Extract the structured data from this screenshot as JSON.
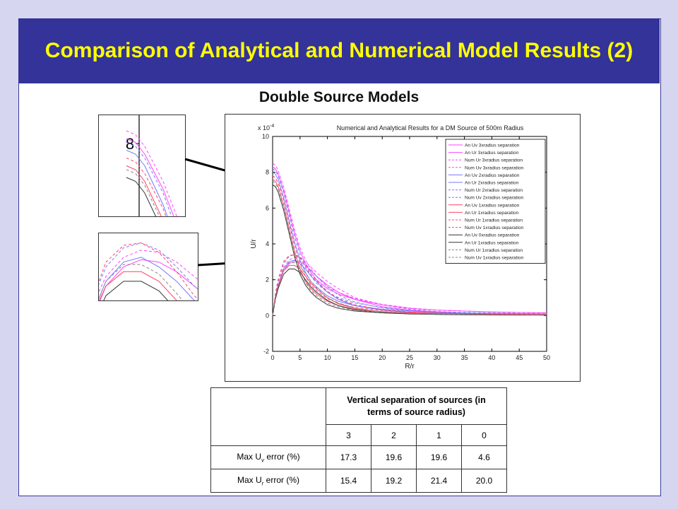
{
  "slide": {
    "title": "Comparison of Analytical and Numerical Model Results (2)",
    "subtitle": "Double Source Models"
  },
  "inset1": {
    "label": "8"
  },
  "chart_data": {
    "type": "line",
    "title": "Numerical and Analytical Results for a DM Source of 500m Radius",
    "xlabel": "R/r",
    "ylabel": "U/r",
    "y_exponent": "x 10",
    "y_exponent_power": "-4",
    "xlim": [
      0,
      50
    ],
    "ylim": [
      -2,
      10
    ],
    "xticks": [
      0,
      5,
      10,
      15,
      20,
      25,
      30,
      35,
      40,
      45,
      50
    ],
    "yticks": [
      -2,
      0,
      2,
      4,
      6,
      8,
      10
    ],
    "grid": false,
    "legend_position": "top-right",
    "x": [
      0,
      0.5,
      1,
      2,
      3,
      4,
      5,
      6,
      7,
      8,
      10,
      12,
      15,
      20,
      25,
      30,
      35,
      40,
      45,
      50
    ],
    "series": [
      {
        "name": "An Uv 3xradius separation",
        "color": "#ff44ff",
        "dash": false,
        "values": [
          8.3,
          8.2,
          7.9,
          7.0,
          5.8,
          4.6,
          3.6,
          2.9,
          2.4,
          2.0,
          1.5,
          1.2,
          0.9,
          0.6,
          0.4,
          0.3,
          0.25,
          0.2,
          0.17,
          0.15
        ]
      },
      {
        "name": "An Ur 3xradius separation",
        "color": "#ff44ff",
        "dash": false,
        "values": [
          0,
          1.0,
          1.7,
          2.5,
          2.9,
          3.05,
          3.0,
          2.8,
          2.5,
          2.2,
          1.7,
          1.3,
          0.9,
          0.5,
          0.3,
          0.2,
          0.13,
          0.1,
          0.08,
          0.06
        ]
      },
      {
        "name": "Num Ur 3xradius separation",
        "color": "#ff44ff",
        "dash": true,
        "values": [
          0,
          1.1,
          1.9,
          2.7,
          3.1,
          3.25,
          3.2,
          3.0,
          2.7,
          2.4,
          1.9,
          1.5,
          1.0,
          0.6,
          0.35,
          0.22,
          0.15,
          0.11,
          0.09,
          0.07
        ]
      },
      {
        "name": "Num Uv 3xradius separation",
        "color": "#ff44ff",
        "dash": true,
        "values": [
          8.5,
          8.4,
          8.1,
          7.2,
          6.0,
          4.8,
          3.8,
          3.1,
          2.6,
          2.2,
          1.6,
          1.3,
          0.95,
          0.62,
          0.42,
          0.31,
          0.25,
          0.2,
          0.17,
          0.15
        ]
      },
      {
        "name": "An Uv 2xradius separation",
        "color": "#7777ff",
        "dash": false,
        "values": [
          8.0,
          7.9,
          7.6,
          6.6,
          5.3,
          4.1,
          3.1,
          2.4,
          1.9,
          1.6,
          1.1,
          0.8,
          0.55,
          0.35,
          0.25,
          0.18,
          0.14,
          0.12,
          0.1,
          0.09
        ]
      },
      {
        "name": "An Ur 2xradius separation",
        "color": "#7777ff",
        "dash": false,
        "values": [
          0,
          1.0,
          1.7,
          2.6,
          3.0,
          3.1,
          2.9,
          2.6,
          2.2,
          1.9,
          1.3,
          0.9,
          0.55,
          0.3,
          0.18,
          0.12,
          0.09,
          0.07,
          0.06,
          0.05
        ]
      },
      {
        "name": "Num Ur 2xradius separation",
        "color": "#7777ff",
        "dash": true,
        "values": [
          0,
          1.2,
          2.0,
          2.9,
          3.3,
          3.4,
          3.25,
          2.9,
          2.5,
          2.2,
          1.6,
          1.15,
          0.75,
          0.42,
          0.27,
          0.19,
          0.14,
          0.11,
          0.09,
          0.08
        ]
      },
      {
        "name": "Num Uv 2xradius separation",
        "color": "#7777ff",
        "dash": true,
        "values": [
          8.2,
          8.1,
          7.8,
          6.9,
          5.6,
          4.4,
          3.4,
          2.7,
          2.2,
          1.8,
          1.3,
          1.0,
          0.7,
          0.45,
          0.3,
          0.22,
          0.17,
          0.14,
          0.12,
          0.1
        ]
      },
      {
        "name": "An Uv 1xradius separation",
        "color": "#ff4466",
        "dash": false,
        "values": [
          7.6,
          7.5,
          7.2,
          6.2,
          4.9,
          3.6,
          2.6,
          1.9,
          1.5,
          1.2,
          0.8,
          0.55,
          0.35,
          0.22,
          0.15,
          0.11,
          0.09,
          0.07,
          0.06,
          0.05
        ]
      },
      {
        "name": "An Ur 1xradius separation",
        "color": "#ff4466",
        "dash": false,
        "values": [
          0,
          1.0,
          1.6,
          2.5,
          2.8,
          2.8,
          2.6,
          2.2,
          1.8,
          1.5,
          1.0,
          0.65,
          0.4,
          0.2,
          0.12,
          0.08,
          0.06,
          0.05,
          0.04,
          0.03
        ]
      },
      {
        "name": "Num Ur 1xradius separation",
        "color": "#ff4466",
        "dash": true,
        "values": [
          0,
          1.2,
          2.0,
          3.0,
          3.35,
          3.4,
          3.2,
          2.8,
          2.3,
          1.95,
          1.35,
          0.95,
          0.6,
          0.32,
          0.2,
          0.14,
          0.1,
          0.08,
          0.07,
          0.06
        ]
      },
      {
        "name": "Num Uv 1xradius separation",
        "color": "#ff4466",
        "dash": true,
        "values": [
          7.8,
          7.7,
          7.4,
          6.5,
          5.2,
          3.9,
          2.9,
          2.2,
          1.7,
          1.4,
          0.95,
          0.68,
          0.45,
          0.28,
          0.19,
          0.14,
          0.11,
          0.09,
          0.07,
          0.06
        ]
      },
      {
        "name": "An Uv 0xradius separation",
        "color": "#333333",
        "dash": false,
        "values": [
          7.3,
          7.2,
          6.9,
          5.9,
          4.6,
          3.3,
          2.3,
          1.7,
          1.3,
          1.0,
          0.6,
          0.4,
          0.25,
          0.15,
          0.1,
          0.07,
          0.05,
          0.04,
          0.035,
          0.03
        ]
      },
      {
        "name": "An Ur 1xradius separation",
        "color": "#333333",
        "dash": false,
        "values": [
          0,
          0.9,
          1.5,
          2.3,
          2.6,
          2.6,
          2.4,
          2.0,
          1.6,
          1.3,
          0.85,
          0.55,
          0.32,
          0.15,
          0.09,
          0.06,
          0.04,
          0.03,
          0.025,
          0.02
        ]
      },
      {
        "name": "Num Ur 1xradius separation",
        "color": "#888888",
        "dash": true,
        "values": [
          0,
          1.0,
          1.7,
          2.6,
          2.95,
          2.95,
          2.75,
          2.35,
          1.9,
          1.55,
          1.0,
          0.7,
          0.42,
          0.2,
          0.12,
          0.08,
          0.06,
          0.045,
          0.035,
          0.03
        ]
      },
      {
        "name": "Num Uv 1xradius separation",
        "color": "#888888",
        "dash": true,
        "values": [
          7.5,
          7.4,
          7.1,
          6.1,
          4.8,
          3.5,
          2.5,
          1.85,
          1.4,
          1.1,
          0.7,
          0.47,
          0.3,
          0.18,
          0.12,
          0.09,
          0.07,
          0.05,
          0.04,
          0.035
        ]
      }
    ]
  },
  "table": {
    "header": "Vertical separation of sources (in terms of source radius)",
    "columns": [
      "3",
      "2",
      "1",
      "0"
    ],
    "rows": [
      {
        "label_prefix": "Max U",
        "label_sub": "v",
        "label_suffix": " error (%)",
        "values": [
          "17.3",
          "19.6",
          "19.6",
          "4.6"
        ]
      },
      {
        "label_prefix": "Max U",
        "label_sub": "r",
        "label_suffix": " error (%)",
        "values": [
          "15.4",
          "19.2",
          "21.4",
          "20.0"
        ]
      }
    ]
  }
}
